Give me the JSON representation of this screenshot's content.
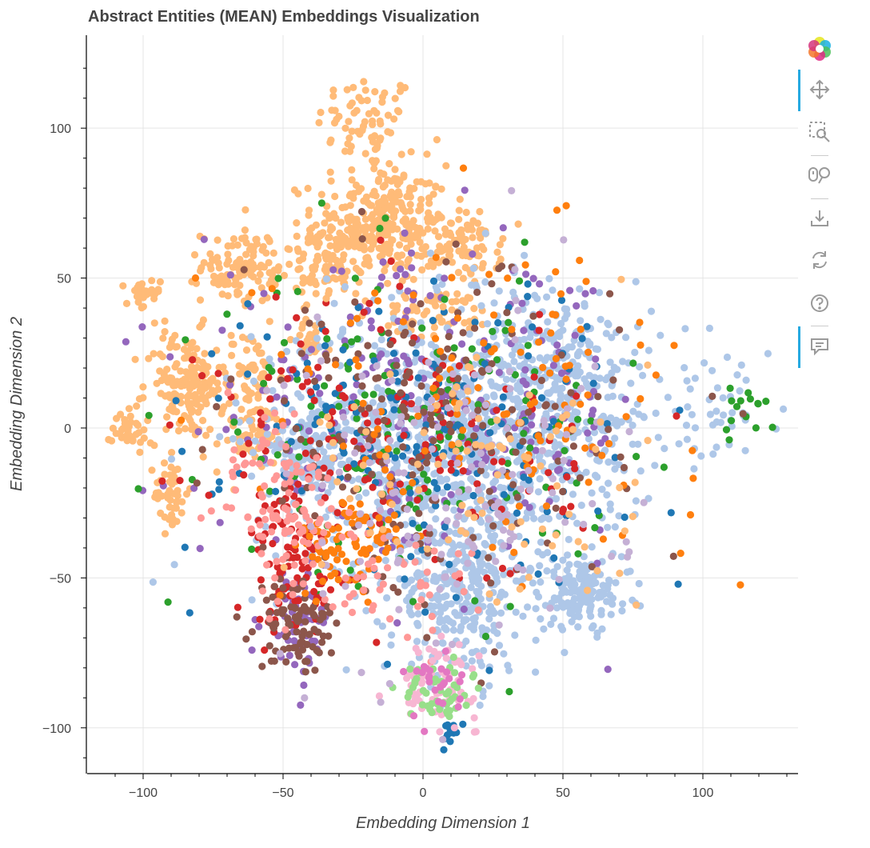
{
  "title": "Abstract Entities (MEAN) Embeddings Visualization",
  "chart_data": {
    "type": "scatter",
    "title": "Abstract Entities (MEAN) Embeddings Visualization",
    "xlabel": "Embedding Dimension 1",
    "ylabel": "Embedding Dimension 2",
    "xlim": [
      -120,
      134
    ],
    "ylim": [
      -115,
      131
    ],
    "xticks": [
      -100,
      -50,
      0,
      50,
      100
    ],
    "yticks": [
      100,
      50,
      0,
      -50,
      -100
    ],
    "xtick_labels": [
      "−100",
      "−50",
      "0",
      "50",
      "100"
    ],
    "ytick_labels": [
      "100",
      "50",
      "0",
      "−50",
      "−100"
    ],
    "grid": true,
    "legend": "none",
    "colors": [
      "#ffbb78",
      "#aec7e8",
      "#1f77b4",
      "#ff7f0e",
      "#2ca02c",
      "#d62728",
      "#9467bd",
      "#8c564b",
      "#e377c2",
      "#ff9896",
      "#98df8a",
      "#c5b0d5",
      "#f7b6d2"
    ],
    "clusters": [
      {
        "x": -20,
        "y": 102,
        "sx": 9,
        "sy": 8,
        "n": 70,
        "color": "#ffbb78"
      },
      {
        "x": -15,
        "y": 68,
        "sx": 12,
        "sy": 10,
        "n": 320,
        "color": "#ffbb78"
      },
      {
        "x": -35,
        "y": 55,
        "sx": 8,
        "sy": 6,
        "n": 90,
        "color": "#ffbb78"
      },
      {
        "x": 16,
        "y": 60,
        "sx": 6,
        "sy": 6,
        "n": 80,
        "color": "#ffbb78"
      },
      {
        "x": -65,
        "y": 54,
        "sx": 7,
        "sy": 6,
        "n": 110,
        "color": "#ffbb78"
      },
      {
        "x": -100,
        "y": 44,
        "sx": 3,
        "sy": 3,
        "n": 30,
        "color": "#ffbb78"
      },
      {
        "x": -85,
        "y": 14,
        "sx": 7,
        "sy": 9,
        "n": 160,
        "color": "#ffbb78"
      },
      {
        "x": -105,
        "y": 0,
        "sx": 3,
        "sy": 4,
        "n": 35,
        "color": "#ffbb78"
      },
      {
        "x": -90,
        "y": -22,
        "sx": 3,
        "sy": 6,
        "n": 45,
        "color": "#ffbb78"
      },
      {
        "x": -62,
        "y": 18,
        "sx": 5,
        "sy": 7,
        "n": 60,
        "color": "#ffbb78"
      },
      {
        "x": -60,
        "y": -2,
        "sx": 6,
        "sy": 6,
        "n": 55,
        "color": "#ffbb78"
      },
      {
        "x": -40,
        "y": 30,
        "sx": 3,
        "sy": 3,
        "n": 20,
        "color": "#ffbb78"
      },
      {
        "x": 5,
        "y": 38,
        "sx": 10,
        "sy": 4,
        "n": 60,
        "color": "#ffbb78"
      },
      {
        "x": 0,
        "y": -5,
        "sx": 30,
        "sy": 22,
        "n": 700,
        "color": "#aec7e8"
      },
      {
        "x": 45,
        "y": 10,
        "sx": 20,
        "sy": 20,
        "n": 450,
        "color": "#aec7e8"
      },
      {
        "x": 15,
        "y": -55,
        "sx": 14,
        "sy": 15,
        "n": 300,
        "color": "#aec7e8"
      },
      {
        "x": 58,
        "y": -55,
        "sx": 8,
        "sy": 6,
        "n": 140,
        "color": "#aec7e8"
      },
      {
        "x": -40,
        "y": -8,
        "sx": 6,
        "sy": 7,
        "n": 80,
        "color": "#aec7e8"
      },
      {
        "x": 105,
        "y": 5,
        "sx": 10,
        "sy": 7,
        "n": 40,
        "color": "#aec7e8"
      },
      {
        "x": 0,
        "y": 5,
        "sx": 40,
        "sy": 25,
        "n": 260,
        "color": "#9467bd"
      },
      {
        "x": -45,
        "y": -65,
        "sx": 6,
        "sy": 8,
        "n": 60,
        "color": "#9467bd"
      },
      {
        "x": -5,
        "y": 0,
        "sx": 35,
        "sy": 25,
        "n": 160,
        "color": "#2ca02c"
      },
      {
        "x": 115,
        "y": 5,
        "sx": 6,
        "sy": 6,
        "n": 15,
        "color": "#2ca02c"
      },
      {
        "x": 0,
        "y": 0,
        "sx": 35,
        "sy": 25,
        "n": 190,
        "color": "#1f77b4"
      },
      {
        "x": 10,
        "y": -102,
        "sx": 2,
        "sy": 2,
        "n": 15,
        "color": "#1f77b4"
      },
      {
        "x": -10,
        "y": -5,
        "sx": 33,
        "sy": 25,
        "n": 160,
        "color": "#d62728"
      },
      {
        "x": -45,
        "y": -45,
        "sx": 8,
        "sy": 12,
        "n": 90,
        "color": "#d62728"
      },
      {
        "x": 0,
        "y": -5,
        "sx": 35,
        "sy": 28,
        "n": 200,
        "color": "#8c564b"
      },
      {
        "x": -45,
        "y": -65,
        "sx": 7,
        "sy": 8,
        "n": 90,
        "color": "#8c564b"
      },
      {
        "x": -25,
        "y": -40,
        "sx": 10,
        "sy": 8,
        "n": 80,
        "color": "#ff7f0e"
      },
      {
        "x": 20,
        "y": 10,
        "sx": 40,
        "sy": 25,
        "n": 130,
        "color": "#ff7f0e"
      },
      {
        "x": -45,
        "y": -30,
        "sx": 8,
        "sy": 10,
        "n": 70,
        "color": "#ff9896"
      },
      {
        "x": -10,
        "y": -50,
        "sx": 20,
        "sy": 10,
        "n": 50,
        "color": "#ff9896"
      },
      {
        "x": 5,
        "y": -85,
        "sx": 7,
        "sy": 6,
        "n": 80,
        "color": "#f7b6d2"
      },
      {
        "x": 5,
        "y": -88,
        "sx": 6,
        "sy": 5,
        "n": 50,
        "color": "#98df8a"
      },
      {
        "x": 3,
        "y": -85,
        "sx": 6,
        "sy": 6,
        "n": 25,
        "color": "#e377c2"
      },
      {
        "x": 10,
        "y": -20,
        "sx": 30,
        "sy": 30,
        "n": 150,
        "color": "#c5b0d5"
      },
      {
        "x": 20,
        "y": -15,
        "sx": 30,
        "sy": 25,
        "n": 100,
        "color": "#ffbb78"
      },
      {
        "x": -55,
        "y": -10,
        "sx": 10,
        "sy": 10,
        "n": 40,
        "color": "#ff9896"
      }
    ]
  },
  "toolbar": {
    "logo": "bokeh-logo-icon",
    "tools": [
      "pan-icon",
      "box-zoom-icon",
      "wheel-zoom-icon",
      "save-icon",
      "reset-icon",
      "help-icon",
      "hover-icon"
    ]
  }
}
